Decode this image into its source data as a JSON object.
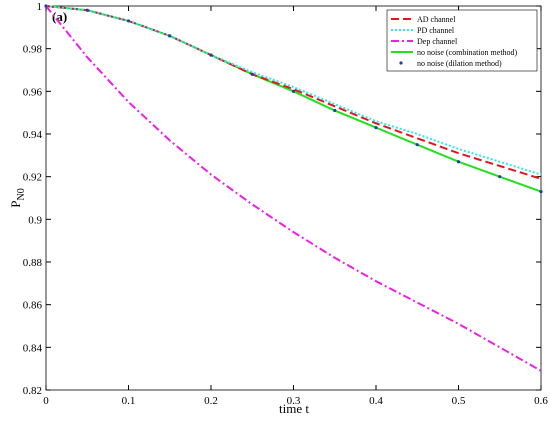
{
  "chart_data": {
    "type": "line",
    "xlabel": "time t",
    "ylabel": "P",
    "ylabel_sub": "N0",
    "annotation": "(a)",
    "x": [
      0,
      0.05,
      0.1,
      0.15,
      0.2,
      0.25,
      0.3,
      0.35,
      0.4,
      0.45,
      0.5,
      0.55,
      0.6
    ],
    "xlim": [
      0,
      0.6
    ],
    "xticks": [
      0,
      0.1,
      0.2,
      0.3,
      0.4,
      0.5,
      0.6
    ],
    "ylim": [
      0.82,
      1
    ],
    "yticks": [
      0.82,
      0.84,
      0.86,
      0.88,
      0.9,
      0.92,
      0.94,
      0.96,
      0.98,
      1
    ],
    "legend": "top-right",
    "series": [
      {
        "name": "AD channel",
        "color": "#e8141b",
        "style": "dashed",
        "values": [
          1,
          0.998,
          0.993,
          0.986,
          0.977,
          0.968,
          0.961,
          0.953,
          0.945,
          0.938,
          0.931,
          0.925,
          0.919
        ]
      },
      {
        "name": "PD channel",
        "color": "#2ee6f0",
        "style": "dotted",
        "values": [
          1,
          0.998,
          0.993,
          0.986,
          0.977,
          0.969,
          0.962,
          0.954,
          0.946,
          0.94,
          0.933,
          0.927,
          0.921
        ]
      },
      {
        "name": "Dep channel",
        "color": "#ee1ee8",
        "style": "dashdot",
        "values": [
          1,
          0.976,
          0.955,
          0.937,
          0.921,
          0.907,
          0.894,
          0.882,
          0.871,
          0.861,
          0.851,
          0.84,
          0.829
        ]
      },
      {
        "name": "no noise (combination method)",
        "color": "#22e01e",
        "style": "solid",
        "values": [
          1,
          0.998,
          0.993,
          0.986,
          0.977,
          0.968,
          0.96,
          0.951,
          0.943,
          0.935,
          0.927,
          0.92,
          0.913
        ]
      },
      {
        "name": "no noise (dilation method)",
        "color": "#1f3fa8",
        "style": "dots",
        "values": [
          1,
          0.998,
          0.993,
          0.986,
          0.977,
          0.968,
          0.96,
          0.951,
          0.943,
          0.935,
          0.927,
          0.92,
          0.913
        ]
      }
    ]
  }
}
